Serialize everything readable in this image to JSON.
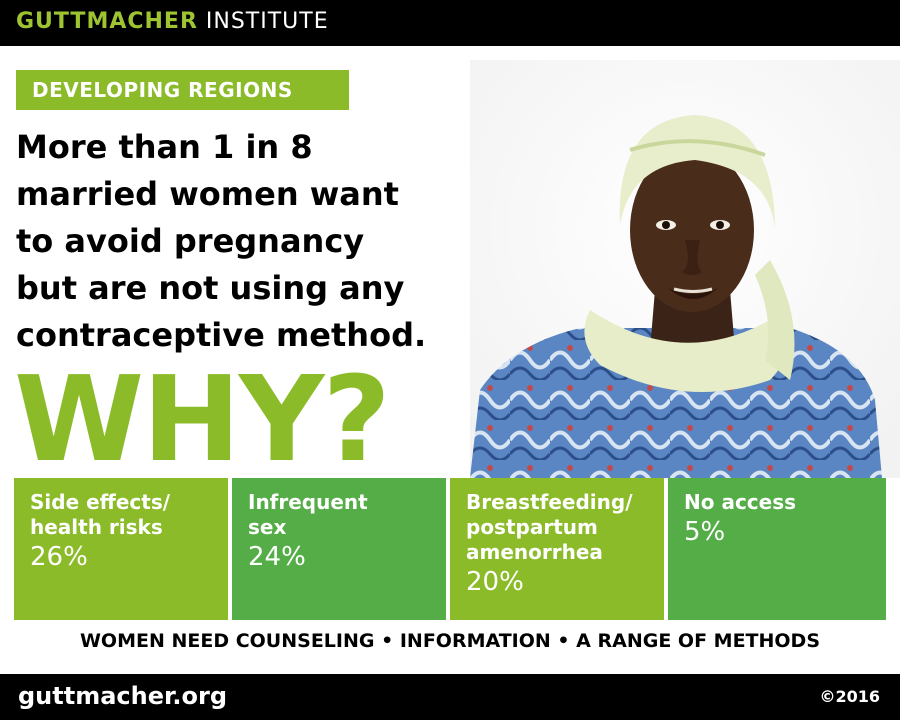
{
  "header": {
    "brand_bold": "GUTTMACHER",
    "brand_regular": "INSTITUTE"
  },
  "region_tag": "DEVELOPING REGIONS",
  "headline": {
    "lines": [
      "More than 1 in 8",
      "married women want",
      "to avoid pregnancy",
      "but are not using any",
      "contraceptive method."
    ]
  },
  "why": "WHY?",
  "stats": [
    {
      "label_lines": [
        "Side effects/",
        "health risks"
      ],
      "value": "26%"
    },
    {
      "label_lines": [
        "Infrequent",
        "sex"
      ],
      "value": "24%"
    },
    {
      "label_lines": [
        "Breastfeeding/",
        "postpartum",
        "amenorrhea"
      ],
      "value": "20%"
    },
    {
      "label_lines": [
        "No access"
      ],
      "value": "5%"
    }
  ],
  "tagline": "WOMEN NEED COUNSELING • INFORMATION • A RANGE OF METHODS",
  "footer": {
    "url": "guttmacher.org",
    "copyright": "©2016"
  },
  "colors": {
    "lime": "#8cbb29",
    "green": "#55ad48",
    "black": "#000000"
  },
  "photo": {
    "icon": "portrait-photo"
  }
}
